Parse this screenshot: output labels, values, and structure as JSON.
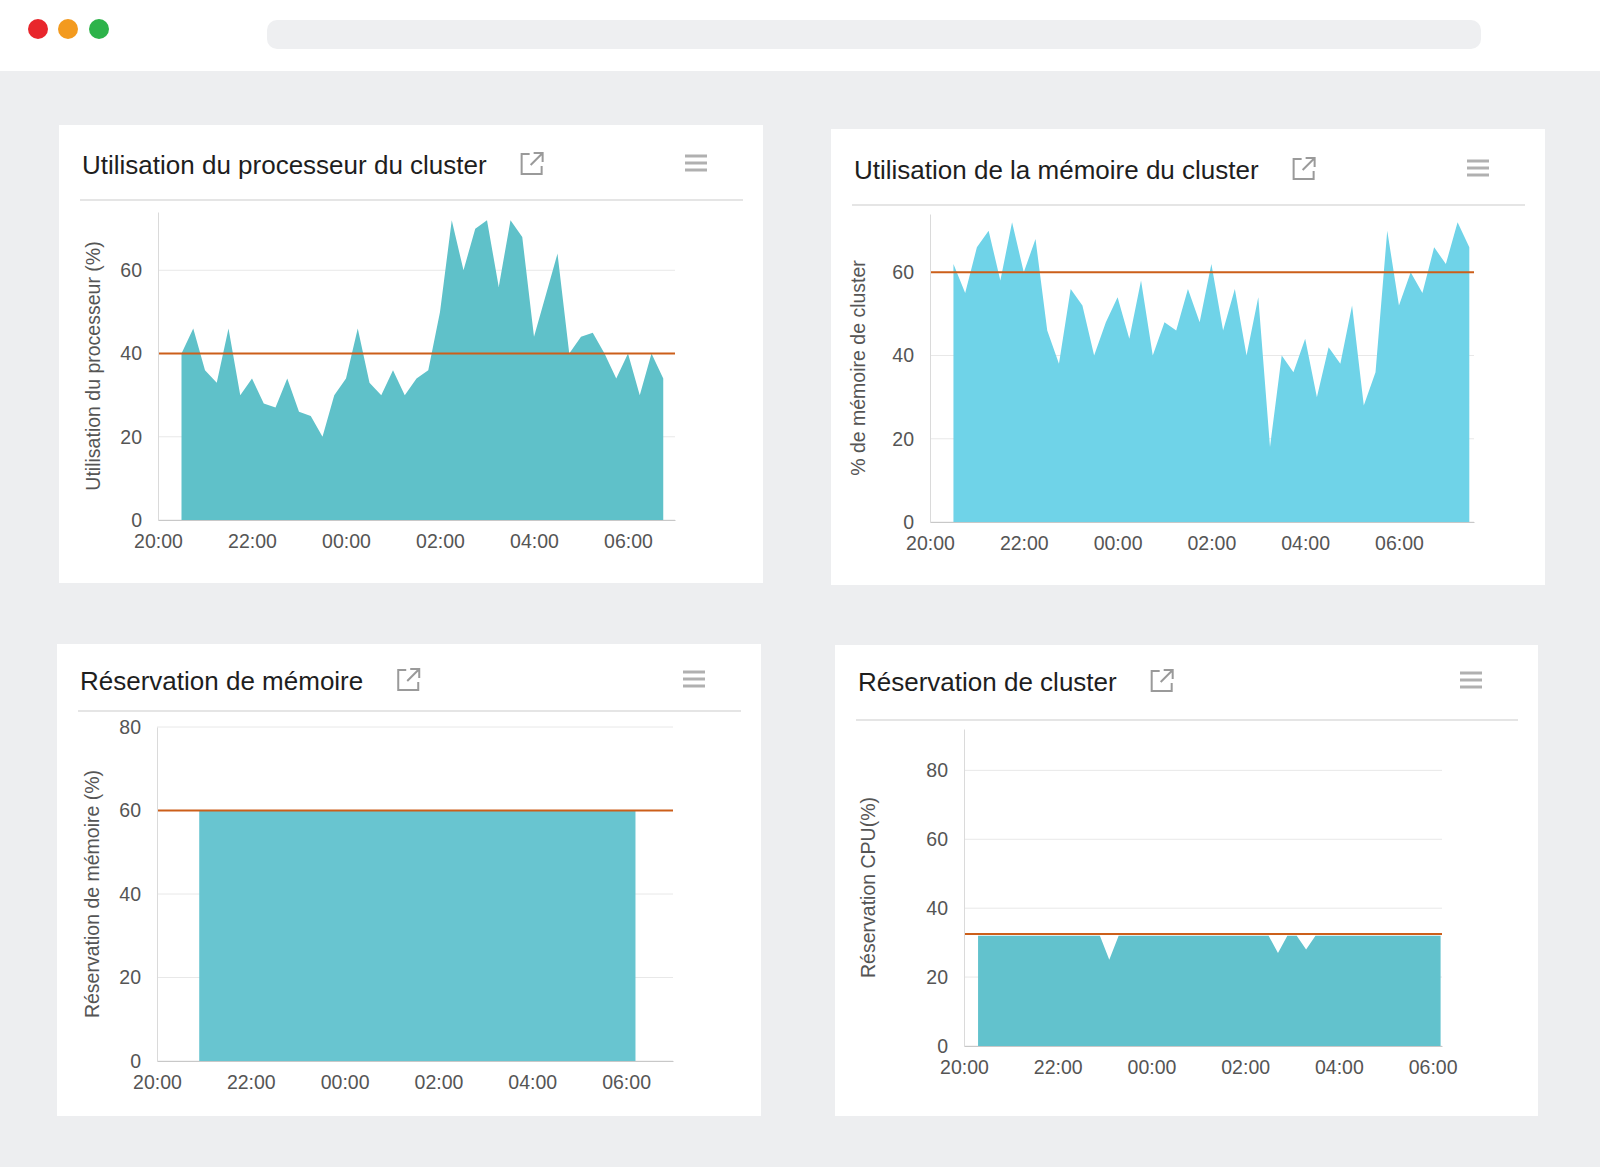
{
  "chart_data": [
    {
      "type": "area",
      "title": "Utilisation du processeur du cluster",
      "y_label": "Utilisation du processeur (%)",
      "x": [
        20.5,
        20.75,
        21,
        21.25,
        21.5,
        21.75,
        22,
        22.25,
        22.5,
        22.75,
        23,
        23.25,
        23.5,
        23.75,
        24,
        24.25,
        24.5,
        24.75,
        25,
        25.25,
        25.5,
        25.75,
        26,
        26.25,
        26.5,
        26.75,
        27,
        27.25,
        27.5,
        27.75,
        28,
        28.25,
        28.5,
        28.75,
        29,
        29.25,
        29.5,
        29.75,
        30,
        30.25,
        30.5,
        30.75
      ],
      "values": [
        40,
        46,
        36,
        33,
        46,
        30,
        34,
        28,
        27,
        34,
        26,
        25,
        20,
        30,
        34,
        46,
        33,
        30,
        36,
        30,
        34,
        36,
        50,
        72,
        60,
        70,
        72,
        56,
        72,
        68,
        44,
        54,
        64,
        40,
        44,
        45,
        40,
        34,
        40,
        30,
        40,
        34
      ],
      "color": "#5fc1c9",
      "threshold": 40,
      "xlim": [
        20,
        31
      ],
      "ylim": [
        0,
        74
      ],
      "xticks": [
        {
          "value": 20,
          "label": "20:00"
        },
        {
          "value": 22,
          "label": "22:00"
        },
        {
          "value": 24,
          "label": "00:00"
        },
        {
          "value": 26,
          "label": "02:00"
        },
        {
          "value": 28,
          "label": "04:00"
        },
        {
          "value": 30,
          "label": "06:00"
        }
      ],
      "yticks": [
        0,
        20,
        40,
        60
      ],
      "grid": true
    },
    {
      "type": "area",
      "title": "Utilisation de la mémoire du cluster",
      "y_label": "% de mémoire de cluster",
      "x": [
        20.5,
        20.75,
        21,
        21.25,
        21.5,
        21.75,
        22,
        22.25,
        22.5,
        22.75,
        23,
        23.25,
        23.5,
        23.75,
        24,
        24.25,
        24.5,
        24.75,
        25,
        25.25,
        25.5,
        25.75,
        26,
        26.25,
        26.5,
        26.75,
        27,
        27.25,
        27.5,
        27.75,
        28,
        28.25,
        28.5,
        28.75,
        29,
        29.25,
        29.5,
        29.75,
        30,
        30.25,
        30.5,
        30.75,
        31,
        31.25,
        31.5
      ],
      "values": [
        62,
        55,
        66,
        70,
        58,
        72,
        60,
        68,
        46,
        38,
        56,
        52,
        40,
        48,
        54,
        44,
        58,
        40,
        48,
        46,
        56,
        48,
        62,
        46,
        56,
        40,
        54,
        18,
        40,
        36,
        44,
        30,
        42,
        38,
        52,
        28,
        36,
        70,
        52,
        60,
        55,
        66,
        62,
        72,
        66
      ],
      "color": "#6fd3e8",
      "threshold": 60,
      "xlim": [
        20,
        31.6
      ],
      "ylim": [
        0,
        74
      ],
      "xticks": [
        {
          "value": 20,
          "label": "20:00"
        },
        {
          "value": 22,
          "label": "22:00"
        },
        {
          "value": 24,
          "label": "00:00"
        },
        {
          "value": 26,
          "label": "02:00"
        },
        {
          "value": 28,
          "label": "04:00"
        },
        {
          "value": 30,
          "label": "06:00"
        }
      ],
      "yticks": [
        0,
        20,
        40,
        60
      ],
      "grid": true
    },
    {
      "type": "area",
      "title": "Réservation de mémoire",
      "y_label": "Réservation de mémoire (%)",
      "x": [
        20.9,
        21,
        22,
        23,
        24,
        25,
        26,
        27,
        28,
        29,
        30,
        30.2
      ],
      "values": [
        60,
        60,
        60,
        60,
        60,
        60,
        60,
        60,
        60,
        60,
        60,
        60
      ],
      "color": "#68c5d0",
      "threshold": 60,
      "xlim": [
        20,
        31
      ],
      "ylim": [
        0,
        80
      ],
      "xticks": [
        {
          "value": 20,
          "label": "20:00"
        },
        {
          "value": 22,
          "label": "22:00"
        },
        {
          "value": 24,
          "label": "00:00"
        },
        {
          "value": 26,
          "label": "02:00"
        },
        {
          "value": 28,
          "label": "04:00"
        },
        {
          "value": 30,
          "label": "06:00"
        }
      ],
      "yticks": [
        0,
        20,
        40,
        60,
        80
      ],
      "grid": true
    },
    {
      "type": "area",
      "title": "Réservation de cluster",
      "y_label": "Réservation CPU(%)",
      "x": [
        20.3,
        22.5,
        22.9,
        23.1,
        23.3,
        24,
        26,
        26.5,
        26.7,
        26.9,
        27.1,
        27.3,
        27.5,
        28,
        30.17
      ],
      "values": [
        32,
        32,
        32,
        25,
        32,
        32,
        32,
        32,
        27,
        32,
        32,
        28,
        32,
        32,
        32
      ],
      "color": "#62c2cd",
      "threshold": 32.5,
      "xlim": [
        20,
        30.2
      ],
      "ylim": [
        0,
        92
      ],
      "xticks": [
        {
          "value": 20,
          "label": "20:00"
        },
        {
          "value": 22,
          "label": "22:00"
        },
        {
          "value": 24,
          "label": "00:00"
        },
        {
          "value": 26,
          "label": "02:00"
        },
        {
          "value": 28,
          "label": "04:00"
        },
        {
          "value": 30,
          "label": "06:00"
        }
      ],
      "yticks": [
        0,
        20,
        40,
        60,
        80
      ],
      "grid": true
    }
  ]
}
